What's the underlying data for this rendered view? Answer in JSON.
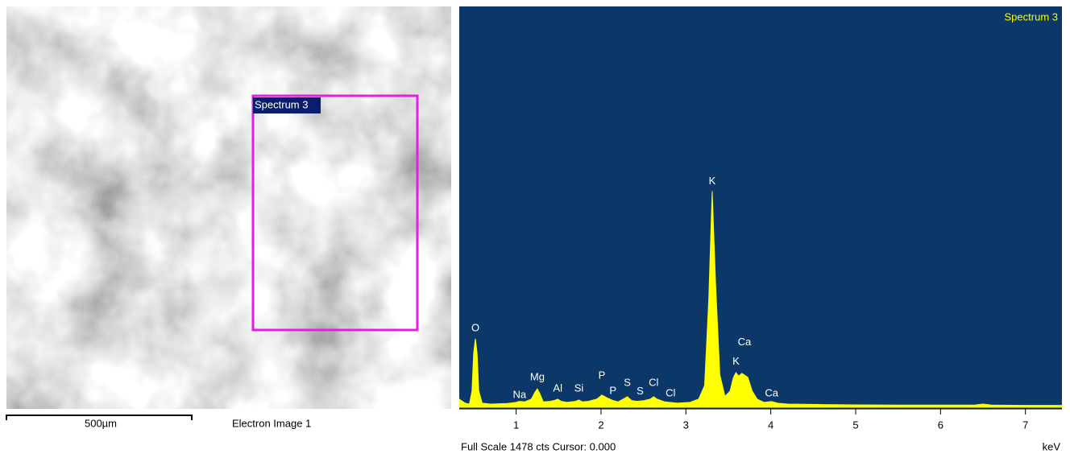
{
  "electron_image": {
    "region_label": "Spectrum 3",
    "scale_bar": "500µm",
    "label": "Electron Image 1"
  },
  "chart_data": {
    "type": "area",
    "title": "Spectrum 3",
    "x_label": "keV",
    "footer": "Full Scale 1478 cts Cursor: 0.000",
    "color": "#ffff00",
    "background": "#0b3868",
    "xlim": [
      0.33,
      7.43
    ],
    "ylim": [
      0,
      1478
    ],
    "xticks": [
      1,
      2,
      3,
      4,
      5,
      6,
      7
    ],
    "x": [
      0.33,
      0.4,
      0.45,
      0.48,
      0.5,
      0.52,
      0.54,
      0.56,
      0.6,
      0.7,
      0.9,
      1.0,
      1.04,
      1.1,
      1.18,
      1.22,
      1.25,
      1.28,
      1.32,
      1.4,
      1.45,
      1.49,
      1.53,
      1.6,
      1.7,
      1.74,
      1.78,
      1.85,
      1.95,
      2.01,
      2.07,
      2.14,
      2.2,
      2.26,
      2.31,
      2.36,
      2.42,
      2.5,
      2.58,
      2.62,
      2.66,
      2.75,
      2.9,
      3.05,
      3.15,
      3.22,
      3.27,
      3.31,
      3.35,
      3.4,
      3.46,
      3.52,
      3.56,
      3.59,
      3.62,
      3.66,
      3.69,
      3.73,
      3.78,
      3.84,
      3.92,
      4.01,
      4.08,
      4.2,
      4.6,
      5.0,
      5.5,
      6.0,
      6.4,
      6.5,
      6.6,
      7.0,
      7.43
    ],
    "values": [
      30,
      15,
      12,
      60,
      200,
      253,
      200,
      60,
      15,
      12,
      14,
      18,
      22,
      20,
      30,
      55,
      68,
      50,
      20,
      22,
      25,
      30,
      22,
      18,
      22,
      27,
      20,
      22,
      30,
      45,
      35,
      25,
      20,
      30,
      39,
      25,
      22,
      24,
      30,
      39,
      30,
      20,
      15,
      18,
      30,
      80,
      400,
      797,
      450,
      120,
      40,
      60,
      110,
      128,
      115,
      125,
      119,
      110,
      60,
      30,
      18,
      21,
      15,
      12,
      10,
      9,
      8,
      8,
      8,
      12,
      8,
      7,
      7
    ],
    "annotations": [
      {
        "text": "O",
        "x": 0.52,
        "y": 291
      },
      {
        "text": "Na",
        "x": 1.04,
        "y": 45
      },
      {
        "text": "Mg",
        "x": 1.25,
        "y": 110
      },
      {
        "text": "Al",
        "x": 1.49,
        "y": 68
      },
      {
        "text": "Si",
        "x": 1.74,
        "y": 68
      },
      {
        "text": "P",
        "x": 2.01,
        "y": 116
      },
      {
        "text": "P",
        "x": 2.14,
        "y": 59
      },
      {
        "text": "S",
        "x": 2.31,
        "y": 89
      },
      {
        "text": "S",
        "x": 2.46,
        "y": 57
      },
      {
        "text": "Cl",
        "x": 2.62,
        "y": 89
      },
      {
        "text": "Cl",
        "x": 2.82,
        "y": 51
      },
      {
        "text": "K",
        "x": 3.31,
        "y": 833
      },
      {
        "text": "Ca",
        "x": 3.69,
        "y": 238
      },
      {
        "text": "K",
        "x": 3.59,
        "y": 167
      },
      {
        "text": "Ca",
        "x": 4.01,
        "y": 51
      }
    ]
  }
}
